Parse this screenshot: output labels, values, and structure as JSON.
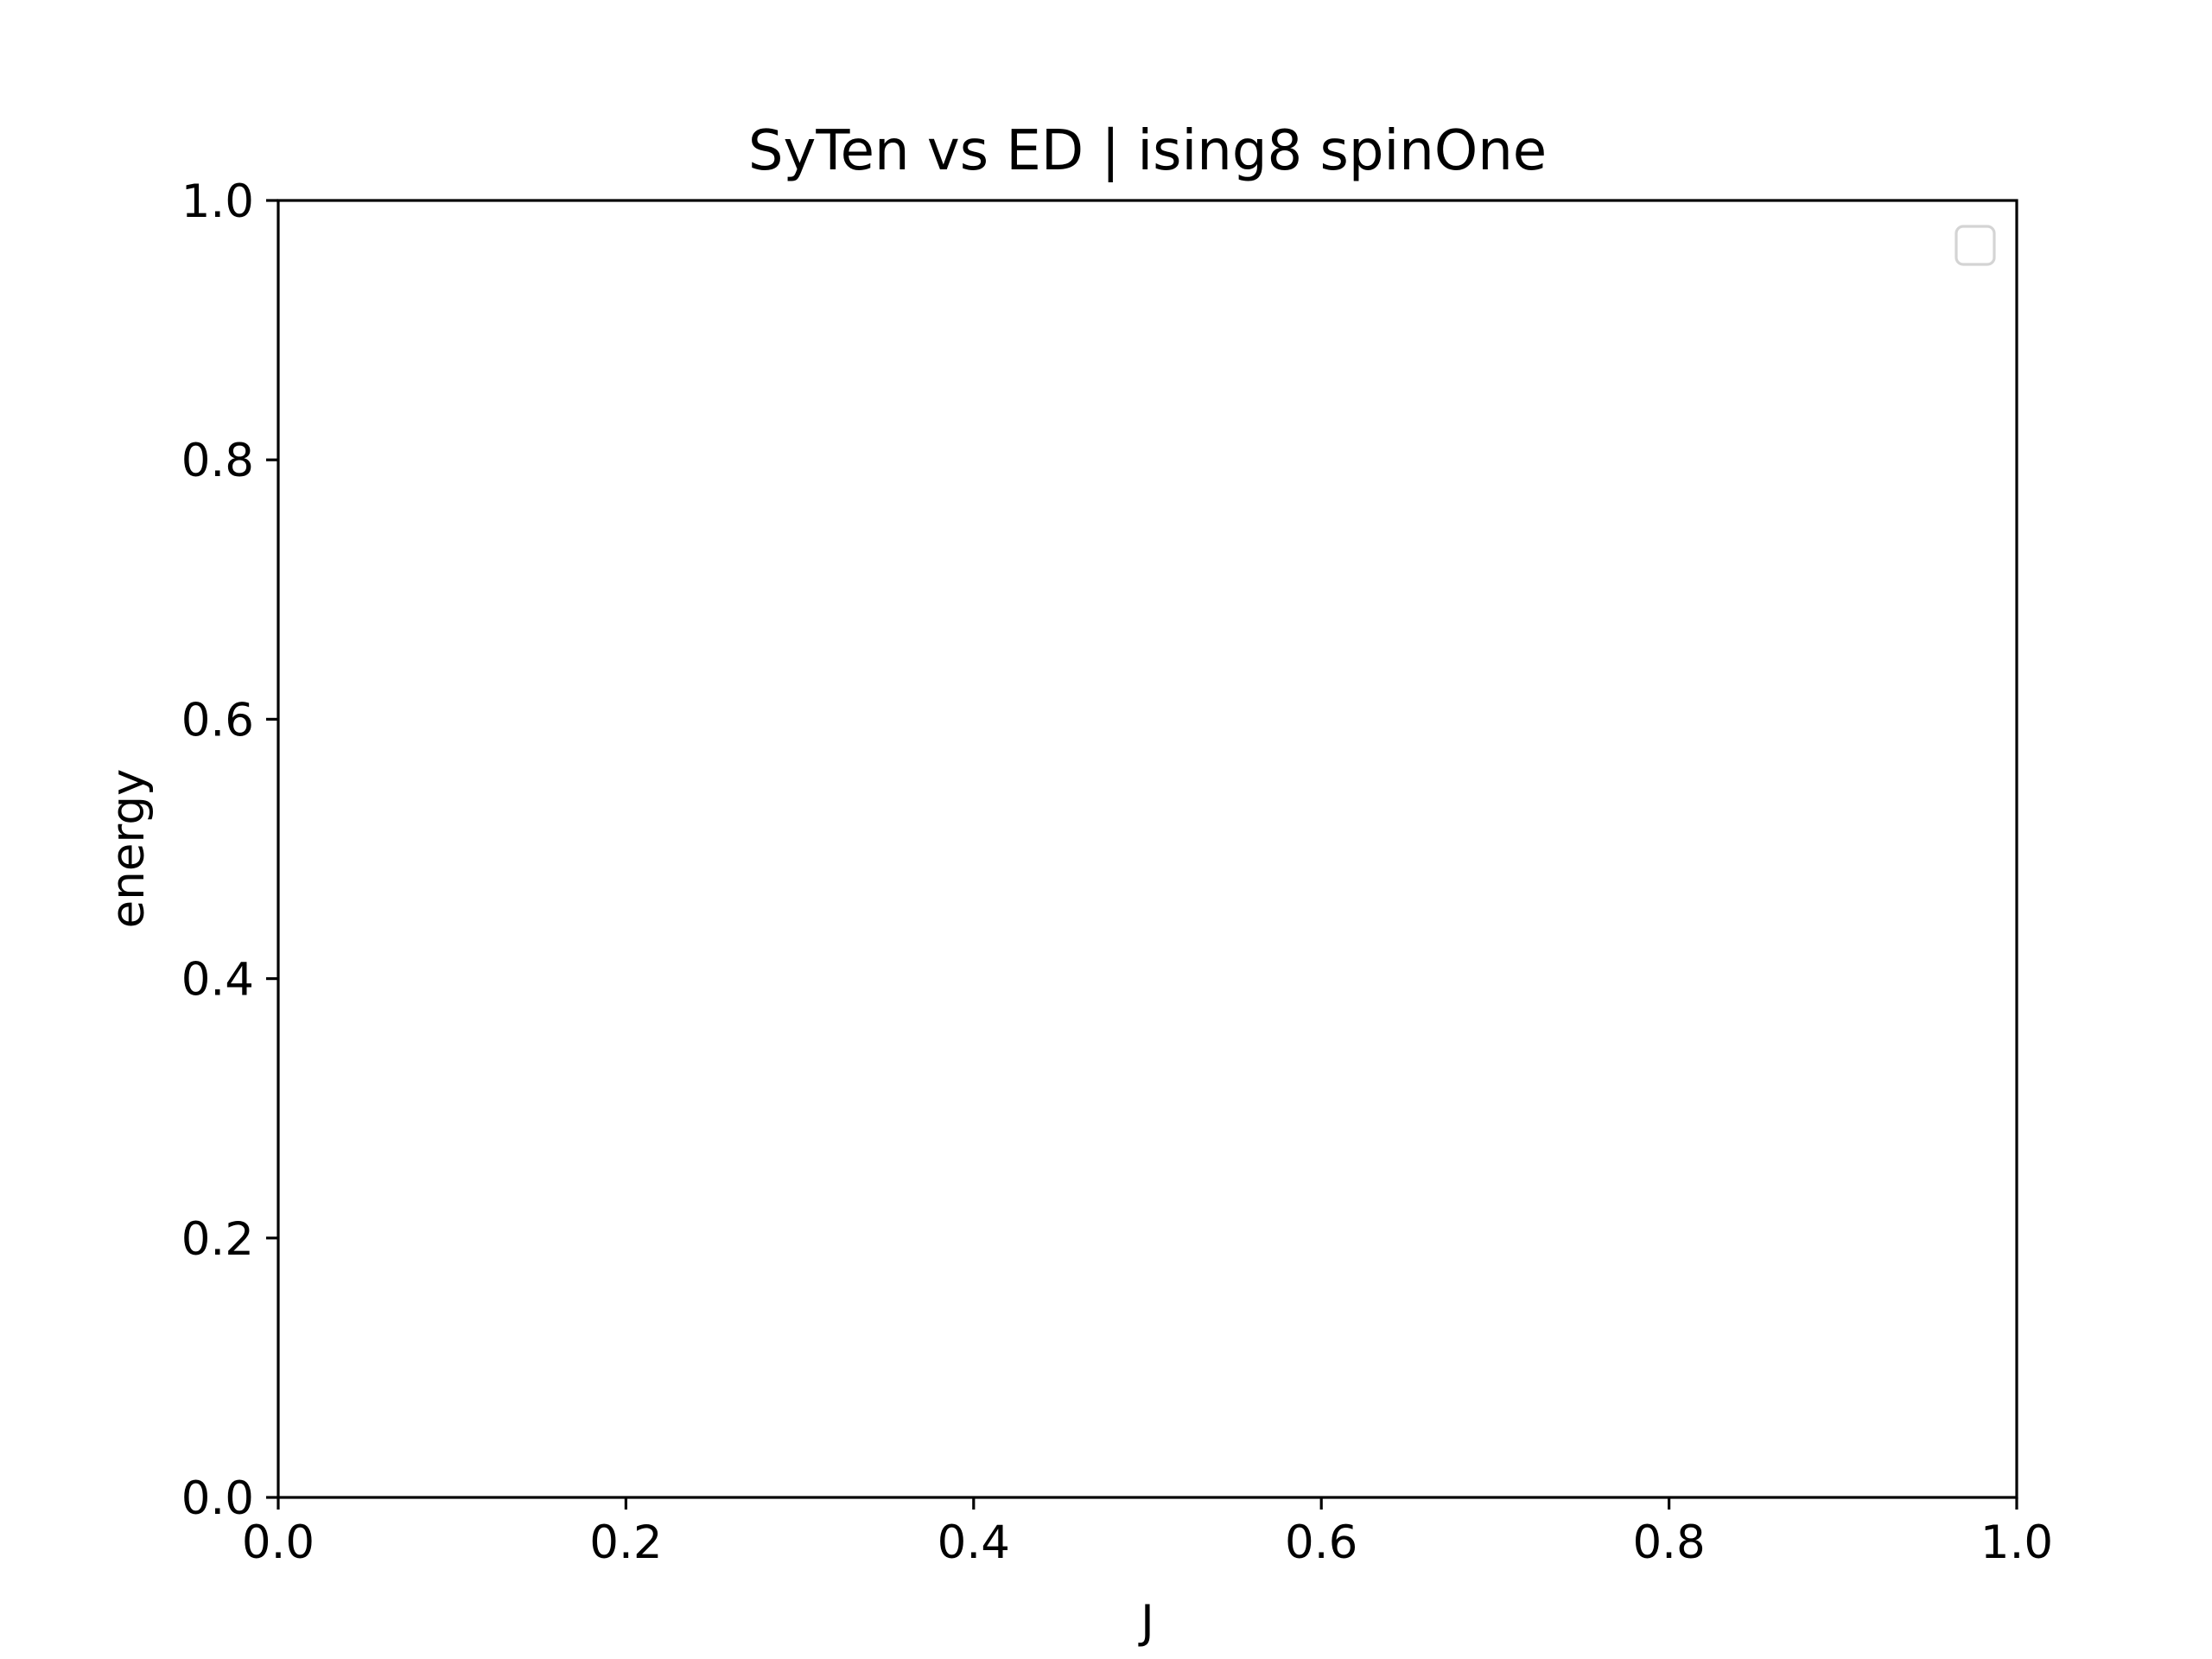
{
  "chart_data": {
    "type": "line",
    "title": "SyTen vs ED | ising8 spinOne",
    "xlabel": "J",
    "ylabel": "energy",
    "xlim": [
      0.0,
      1.0
    ],
    "ylim": [
      0.0,
      1.0
    ],
    "xticks": [
      0.0,
      0.2,
      0.4,
      0.6,
      0.8,
      1.0
    ],
    "yticks": [
      0.0,
      0.2,
      0.4,
      0.6,
      0.8,
      1.0
    ],
    "xtick_labels": [
      "0.0",
      "0.2",
      "0.4",
      "0.6",
      "0.8",
      "1.0"
    ],
    "ytick_labels": [
      "0.0",
      "0.2",
      "0.4",
      "0.6",
      "0.8",
      "1.0"
    ],
    "series": [],
    "legend": {
      "placement": "top-right",
      "entries": []
    },
    "grid": false
  }
}
